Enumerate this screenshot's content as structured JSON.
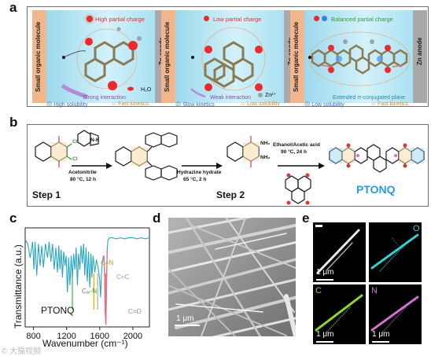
{
  "panels": {
    "a": "a",
    "b": "b",
    "c": "c",
    "d": "d",
    "e": "e"
  },
  "panel_a": {
    "cells": [
      {
        "left_label": "Small organic molecule",
        "right_label": "Zn anode",
        "title": "High partial charge",
        "title_color": "#d9322a",
        "water": "H₂O",
        "interaction": "Strong interaction",
        "interaction_color": "#7d52a8",
        "bottom_left": "High solubility",
        "bottom_right": "Fast kinetics"
      },
      {
        "left_label": "Small organic molecule",
        "right_label": "Zn anode",
        "title": "Low partial charge",
        "title_color": "#d9322a",
        "zn": "Zn²⁺",
        "interaction": "Weak interaction",
        "interaction_color": "#7d52a8",
        "bottom_left": "Slow kinetics",
        "bottom_right": "Low solubility"
      },
      {
        "left_label": "Small organic molecule",
        "right_label": "Zn anode",
        "title": "Balanced partial charge",
        "title_color": "#3a9a3a",
        "interaction": "Extended π-conjugated plane",
        "interaction_color": "#2a8aa8",
        "bottom_left": "Low solubility",
        "bottom_right": "Fast kinetics"
      }
    ]
  },
  "panel_b": {
    "reagent": "N-K",
    "cl": "Cl",
    "cond1_a": "Acetonitrile",
    "cond1_b": "80 °C, 12 h",
    "cond2_a": "Hydrazine hydrate",
    "cond2_b": "65 °C, 2 h",
    "cond3_a": "Ethanol/Acetic acid",
    "cond3_b": "90 °C, 24 h",
    "nh2": "NH₂",
    "step1": "Step 1",
    "step2": "Step 2",
    "product": "PTONQ"
  },
  "panel_c": {
    "ylabel": "Transmittance (a.u.)",
    "xlabel": "Wavenumber (cm⁻¹)",
    "sample": "PTONQ",
    "ann_cn": "C=N",
    "ann_cc": "C=C",
    "ann_co": "C=O",
    "ann_can": "Cₐᵣ-N",
    "chart_data": {
      "type": "line",
      "xlabel": "Wavenumber (cm⁻¹)",
      "ylabel": "Transmittance (a.u.)",
      "xlim": [
        700,
        2200
      ],
      "xticks": [
        800,
        1200,
        1600,
        2000
      ],
      "series": [
        {
          "name": "PTONQ",
          "color": "#2aa7bf",
          "x": [
            700,
            730,
            760,
            790,
            805,
            820,
            840,
            860,
            880,
            900,
            920,
            945,
            970,
            990,
            1010,
            1030,
            1050,
            1070,
            1090,
            1105,
            1120,
            1135,
            1150,
            1165,
            1180,
            1195,
            1210,
            1225,
            1240,
            1255,
            1270,
            1285,
            1300,
            1315,
            1330,
            1345,
            1360,
            1375,
            1390,
            1405,
            1420,
            1435,
            1450,
            1465,
            1480,
            1495,
            1505,
            1520,
            1540,
            1560,
            1580,
            1600,
            1610,
            1620,
            1630,
            1640,
            1650,
            1660,
            1665,
            1670,
            1675,
            1680,
            1690,
            1700,
            1720,
            1750,
            1800,
            1850,
            1900,
            1950,
            2000,
            2050,
            2100,
            2150,
            2200
          ],
          "y": [
            88,
            84,
            70,
            86,
            58,
            86,
            52,
            84,
            62,
            82,
            60,
            84,
            70,
            86,
            66,
            84,
            58,
            80,
            55,
            82,
            58,
            78,
            50,
            76,
            62,
            72,
            35,
            70,
            42,
            72,
            50,
            74,
            58,
            80,
            42,
            74,
            58,
            82,
            64,
            84,
            52,
            80,
            46,
            76,
            40,
            74,
            50,
            72,
            55,
            68,
            60,
            48,
            30,
            52,
            64,
            70,
            72,
            50,
            18,
            8,
            2,
            30,
            78,
            88,
            90,
            90,
            89,
            90,
            89,
            90,
            90,
            89,
            90,
            89,
            90
          ]
        }
      ],
      "annotations": [
        {
          "label": "C=N",
          "x": 1530,
          "color": "#e2b600"
        },
        {
          "label": "C=C",
          "x": 1575,
          "color": "#b7b7b7"
        },
        {
          "label": "C=O",
          "x": 1670,
          "color": "#e3717e"
        },
        {
          "label": "Cₐᵣ-N",
          "x": 1270,
          "color": "#5ebd5e"
        }
      ]
    }
  },
  "panel_d": {
    "scale": "1 μm"
  },
  "panel_e": {
    "maps": [
      {
        "label": "",
        "scale": "1 μm",
        "color": "#e8e8e8"
      },
      {
        "label": "O",
        "scale": "",
        "color": "#2fd0d6"
      },
      {
        "label": "C",
        "scale": "1 μm",
        "color": "#8ed630"
      },
      {
        "label": "N",
        "scale": "1 μm",
        "color": "#d66fd3"
      }
    ]
  },
  "watermark": "© 大猫视频"
}
